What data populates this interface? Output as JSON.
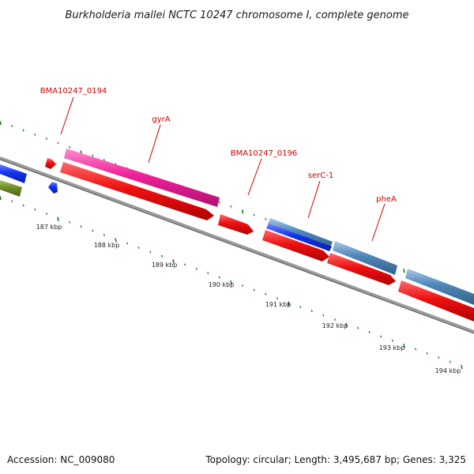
{
  "title": "Burkholderia mallei NCTC 10247 chromosome I, complete genome",
  "accession": "Accession: NC_009080",
  "summary": "Topology: circular; Length: 3,495,687 bp; Genes: 3,325",
  "gene_labels": [
    {
      "name": "BMA10247_0194"
    },
    {
      "name": "gyrA"
    },
    {
      "name": "BMA10247_0196"
    },
    {
      "name": "serC-1"
    },
    {
      "name": "pheA"
    }
  ],
  "tick_labels": [
    "187 kbp",
    "188 kbp",
    "189 kbp",
    "190 kbp",
    "191 kbp",
    "192 kbp",
    "193 kbp",
    "194 kbp"
  ],
  "colors": {
    "label_red": "#cc0000",
    "tick_green": "#1e7a1e",
    "backbone": "#8a8a8a",
    "cds_red": "#ee1111",
    "pink": "#ee2299",
    "blue": "#1133ee",
    "steelblue": "#4f86b8",
    "olive": "#6f8f2a"
  }
}
